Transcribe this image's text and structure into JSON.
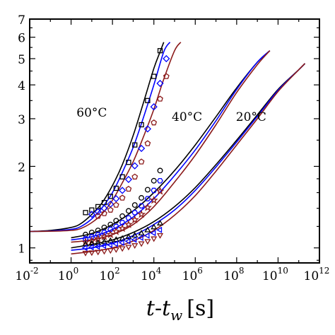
{
  "chart_data": {
    "type": "line",
    "x_scale": "log",
    "y_scale": "log",
    "xlim": [
      0.01,
      1000000000000
    ],
    "ylim": [
      0.88,
      7
    ],
    "grid": false,
    "x_tick_values": [
      0.01,
      1,
      100,
      10000,
      1000000,
      100000000,
      10000000000,
      1000000000000
    ],
    "x_tick_labels": [
      {
        "base": "10",
        "exp": "-2"
      },
      {
        "base": "10",
        "exp": "0"
      },
      {
        "base": "10",
        "exp": "2"
      },
      {
        "base": "10",
        "exp": "4"
      },
      {
        "base": "10",
        "exp": "6"
      },
      {
        "base": "10",
        "exp": "8"
      },
      {
        "base": "10",
        "exp": "10"
      },
      {
        "base": "10",
        "exp": "12"
      }
    ],
    "y_ticks": [
      {
        "value": 1,
        "label": "1"
      },
      {
        "value": 2,
        "label": "2"
      },
      {
        "value": 3,
        "label": "3"
      },
      {
        "value": 4,
        "label": "4"
      },
      {
        "value": 5,
        "label": "5"
      },
      {
        "value": 6,
        "label": "6"
      },
      {
        "value": 7,
        "label": "7"
      }
    ],
    "xlabel": {
      "t": "t",
      "dash": "-",
      "tw": "t",
      "sub": "w",
      "unit": "[s]"
    },
    "annotations": [
      {
        "text": "60°C",
        "x": 10,
        "y": 3.05
      },
      {
        "text": "40°C",
        "x": 400000,
        "y": 2.95
      },
      {
        "text": "20°C",
        "x": 500000000,
        "y": 2.95
      }
    ],
    "series": [
      {
        "color": "#000000",
        "marker": "square",
        "x": [
          5,
          10,
          20,
          40,
          80,
          150,
          300,
          600,
          1200,
          2500,
          5000,
          10000,
          20000
        ],
        "y": [
          1.35,
          1.38,
          1.42,
          1.47,
          1.55,
          1.66,
          1.83,
          2.07,
          2.4,
          2.85,
          3.5,
          4.3,
          5.35
        ]
      },
      {
        "color": "#0000ff",
        "marker": "diamond",
        "x": [
          10,
          20,
          40,
          80,
          150,
          300,
          600,
          1200,
          2500,
          5000,
          10000,
          20000,
          40000
        ],
        "y": [
          1.33,
          1.36,
          1.4,
          1.45,
          1.52,
          1.63,
          1.79,
          2.01,
          2.33,
          2.75,
          3.32,
          4.05,
          5.0
        ]
      },
      {
        "color": "#8b1a1a",
        "marker": "pentagon",
        "x": [
          20,
          40,
          80,
          150,
          300,
          600,
          1200,
          2500,
          5000,
          10000,
          20000,
          40000
        ],
        "y": [
          1.31,
          1.34,
          1.38,
          1.44,
          1.53,
          1.65,
          1.83,
          2.08,
          2.43,
          2.9,
          3.55,
          4.3
        ]
      },
      {
        "color": "#000000",
        "marker": "circle",
        "x": [
          5,
          10,
          20,
          40,
          80,
          150,
          300,
          600,
          1200,
          2500,
          5000,
          10000,
          20000
        ],
        "y": [
          1.12,
          1.14,
          1.16,
          1.19,
          1.22,
          1.26,
          1.31,
          1.37,
          1.44,
          1.53,
          1.64,
          1.77,
          1.93
        ]
      },
      {
        "color": "#0000ff",
        "marker": "hexagon",
        "x": [
          5,
          10,
          20,
          40,
          80,
          150,
          300,
          600,
          1200,
          2500,
          5000,
          10000,
          20000
        ],
        "y": [
          1.08,
          1.1,
          1.12,
          1.14,
          1.17,
          1.2,
          1.24,
          1.29,
          1.35,
          1.43,
          1.52,
          1.63,
          1.77
        ]
      },
      {
        "color": "#8b1a1a",
        "marker": "star",
        "x": [
          5,
          10,
          20,
          40,
          80,
          150,
          300,
          600,
          1200,
          2500,
          5000,
          10000,
          20000
        ],
        "y": [
          1.05,
          1.06,
          1.08,
          1.1,
          1.12,
          1.15,
          1.18,
          1.22,
          1.27,
          1.33,
          1.41,
          1.5,
          1.62
        ]
      },
      {
        "color": "#000000",
        "marker": "triangle-up",
        "x": [
          5,
          10,
          20,
          40,
          80,
          150,
          300,
          600,
          1200,
          2500,
          5000,
          10000,
          20000
        ],
        "y": [
          1.03,
          1.035,
          1.04,
          1.05,
          1.06,
          1.07,
          1.08,
          1.095,
          1.11,
          1.13,
          1.16,
          1.19,
          1.23
        ]
      },
      {
        "color": "#0000ff",
        "marker": "triangle-left",
        "x": [
          5,
          10,
          20,
          40,
          80,
          150,
          300,
          600,
          1200,
          2500,
          5000,
          10000,
          20000
        ],
        "y": [
          1.0,
          1.005,
          1.01,
          1.018,
          1.026,
          1.035,
          1.045,
          1.058,
          1.072,
          1.09,
          1.11,
          1.135,
          1.165
        ]
      },
      {
        "color": "#8b1a1a",
        "marker": "triangle-down",
        "x": [
          5,
          10,
          20,
          40,
          80,
          150,
          300,
          600,
          1200,
          2500,
          5000,
          10000,
          20000
        ],
        "y": [
          0.96,
          0.963,
          0.968,
          0.974,
          0.981,
          0.989,
          0.998,
          1.01,
          1.024,
          1.04,
          1.06,
          1.085,
          1.115
        ]
      }
    ],
    "fit_curves": [
      {
        "color": "#000000",
        "x": [
          0.01,
          0.1,
          1,
          3,
          10,
          30,
          100,
          300,
          1000,
          3000,
          10000,
          20000,
          30000
        ],
        "y": [
          1.15,
          1.16,
          1.19,
          1.23,
          1.33,
          1.46,
          1.7,
          2.03,
          2.6,
          3.4,
          4.6,
          5.3,
          5.75
        ]
      },
      {
        "color": "#0000ff",
        "x": [
          0.01,
          0.1,
          1,
          3,
          10,
          30,
          100,
          300,
          1000,
          3000,
          10000,
          30000,
          60000
        ],
        "y": [
          1.15,
          1.155,
          1.17,
          1.2,
          1.28,
          1.4,
          1.6,
          1.9,
          2.35,
          3.0,
          4.0,
          5.3,
          5.75
        ]
      },
      {
        "color": "#8b1a1a",
        "x": [
          0.01,
          0.1,
          1,
          3,
          10,
          30,
          100,
          300,
          1000,
          3000,
          10000,
          30000,
          100000,
          200000
        ],
        "y": [
          1.15,
          1.152,
          1.16,
          1.18,
          1.24,
          1.33,
          1.5,
          1.74,
          2.08,
          2.55,
          3.25,
          4.2,
          5.35,
          5.75
        ]
      },
      {
        "color": "#000000",
        "x": [
          1,
          10,
          100,
          1000,
          10000,
          100000,
          1000000,
          10000000,
          100000000,
          1000000000,
          4000000000
        ],
        "y": [
          1.09,
          1.13,
          1.22,
          1.37,
          1.6,
          1.93,
          2.4,
          3.05,
          3.9,
          4.85,
          5.35
        ]
      },
      {
        "color": "#0000ff",
        "x": [
          1,
          10,
          100,
          1000,
          10000,
          100000,
          1000000,
          10000000,
          100000000,
          1000000000,
          4000000000
        ],
        "y": [
          1.07,
          1.1,
          1.17,
          1.3,
          1.52,
          1.85,
          2.3,
          2.95,
          3.85,
          4.85,
          5.35
        ]
      },
      {
        "color": "#8b1a1a",
        "x": [
          1,
          10,
          100,
          1000,
          10000,
          100000,
          1000000,
          10000000,
          100000000,
          1000000000,
          4000000000
        ],
        "y": [
          1.05,
          1.07,
          1.12,
          1.22,
          1.42,
          1.75,
          2.2,
          2.85,
          3.75,
          4.75,
          5.35
        ]
      },
      {
        "color": "#000000",
        "x": [
          1,
          10,
          100,
          1000,
          10000,
          100000,
          1000000,
          10000000,
          100000000,
          1000000000,
          10000000000,
          100000000000,
          200000000000
        ],
        "y": [
          1.0,
          1.03,
          1.07,
          1.14,
          1.25,
          1.42,
          1.67,
          2.03,
          2.5,
          3.1,
          3.85,
          4.55,
          4.8
        ]
      },
      {
        "color": "#0000ff",
        "x": [
          1,
          10,
          100,
          1000,
          10000,
          100000,
          1000000,
          10000000,
          100000000,
          1000000000,
          10000000000,
          100000000000,
          200000000000
        ],
        "y": [
          0.98,
          1.0,
          1.04,
          1.11,
          1.22,
          1.38,
          1.63,
          1.99,
          2.46,
          3.06,
          3.82,
          4.55,
          4.8
        ]
      },
      {
        "color": "#8b1a1a",
        "x": [
          1,
          10,
          100,
          1000,
          10000,
          100000,
          1000000,
          10000000,
          100000000,
          1000000000,
          10000000000,
          100000000000,
          200000000000
        ],
        "y": [
          0.95,
          0.97,
          1.0,
          1.06,
          1.16,
          1.32,
          1.56,
          1.92,
          2.4,
          3.0,
          3.78,
          4.55,
          4.8
        ]
      }
    ]
  }
}
